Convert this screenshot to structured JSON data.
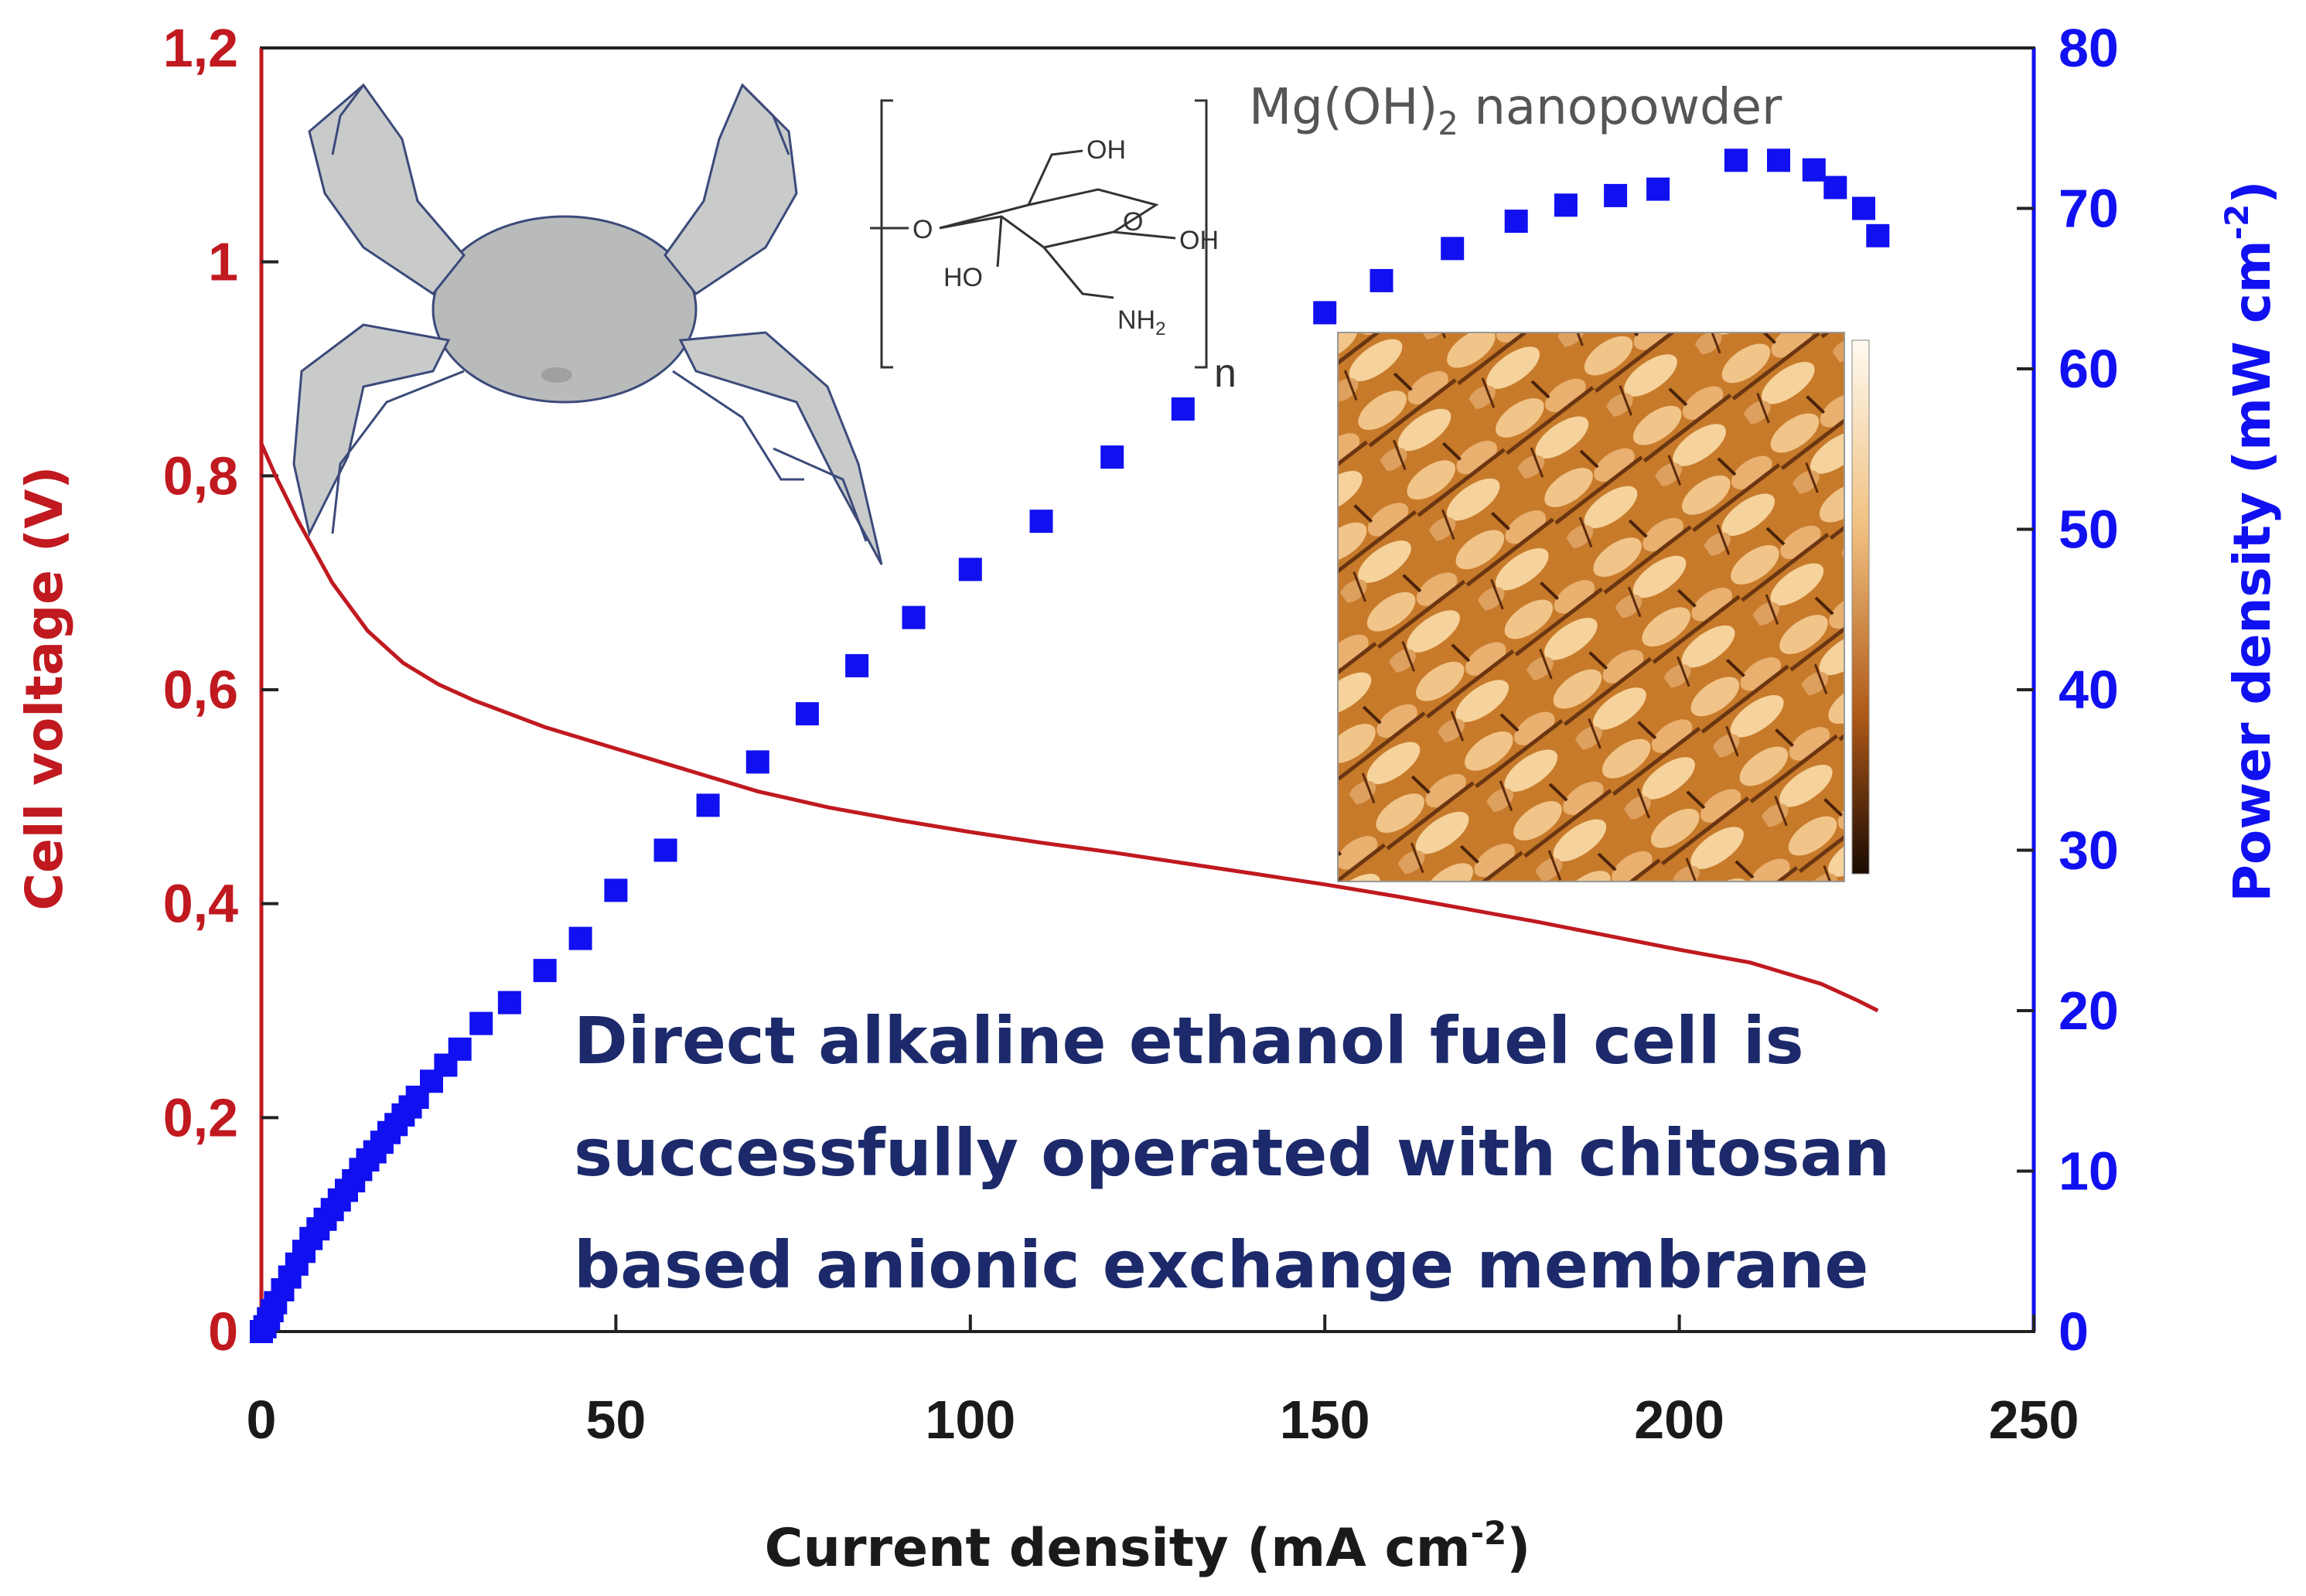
{
  "chart_data": {
    "type": "line",
    "xlabel_prefix": "Current density (mA cm",
    "xlabel_sup": "-2",
    "xlabel_suffix": ")",
    "ylabel_left": "Cell voltage (V)",
    "ylabel_right_prefix": "Power density (mW cm",
    "ylabel_right_sup": "-2",
    "ylabel_right_suffix": ")",
    "xlim": [
      0,
      250
    ],
    "ylim_left": [
      0,
      1.2
    ],
    "ylim_right": [
      0,
      80
    ],
    "x_ticks": [
      "0",
      "50",
      "100",
      "150",
      "200",
      "250"
    ],
    "y_left_ticks": [
      "0",
      "0,2",
      "0,4",
      "0,6",
      "0,8",
      "1",
      "1,2"
    ],
    "y_right_ticks": [
      "0",
      "10",
      "20",
      "30",
      "40",
      "50",
      "60",
      "70",
      "80"
    ],
    "colors": {
      "voltage": "#c0191f",
      "power": "#1010f0",
      "annotation": "#1c2a6b"
    },
    "series": [
      {
        "axis": "left",
        "style": "line",
        "x": [
          0,
          2,
          5,
          10,
          15,
          20,
          25,
          30,
          40,
          50,
          60,
          70,
          80,
          90,
          100,
          110,
          120,
          130,
          140,
          150,
          160,
          170,
          180,
          190,
          200,
          210,
          215,
          220,
          225,
          228
        ],
        "y": [
          0.83,
          0.8,
          0.76,
          0.7,
          0.655,
          0.625,
          0.605,
          0.59,
          0.565,
          0.545,
          0.525,
          0.505,
          0.49,
          0.478,
          0.467,
          0.457,
          0.448,
          0.438,
          0.428,
          0.418,
          0.407,
          0.395,
          0.383,
          0.37,
          0.357,
          0.345,
          0.335,
          0.325,
          0.31,
          0.3
        ]
      },
      {
        "axis": "right",
        "style": "markers",
        "x": [
          0,
          0.5,
          1,
          1.5,
          2,
          3,
          4,
          5,
          6,
          7,
          8,
          9,
          10,
          11,
          12,
          13,
          14,
          15,
          16,
          17,
          18,
          19,
          20,
          21,
          22,
          24,
          26,
          28,
          31,
          35,
          40,
          45,
          50,
          57,
          63,
          70,
          77,
          84,
          92,
          100,
          110,
          120,
          130,
          150,
          158,
          168,
          177,
          184,
          191,
          197,
          208,
          214,
          219,
          222,
          226,
          228
        ],
        "y": [
          0,
          0.3,
          0.8,
          1.3,
          1.8,
          2.6,
          3.4,
          4.2,
          5.0,
          5.8,
          6.4,
          7.0,
          7.6,
          8.2,
          8.8,
          9.4,
          10.1,
          10.7,
          11.2,
          11.8,
          12.4,
          12.9,
          13.5,
          14.0,
          14.6,
          15.6,
          16.6,
          17.6,
          19.2,
          20.5,
          22.5,
          24.5,
          27.5,
          30.0,
          32.8,
          35.5,
          38.5,
          41.5,
          44.5,
          47.5,
          50.5,
          54.5,
          57.5,
          63.5,
          65.5,
          67.5,
          69.2,
          70.2,
          70.8,
          71.2,
          73.0,
          73.0,
          72.4,
          71.3,
          70.0,
          68.3
        ]
      }
    ],
    "annotation_lines": [
      "Direct alkaline ethanol fuel cell is",
      "successfully operated with chitosan",
      "based anionic exchange membrane"
    ],
    "inset_label_prefix": "Mg(OH)",
    "inset_label_sub": "2",
    "inset_label_suffix": " nanopowder",
    "chitosan_labels": {
      "oh_top": "OH",
      "o_ring": "O",
      "o_link": "O",
      "oh_right": "OH",
      "ho_left": "HO",
      "nh2": "NH",
      "nh2_sub": "2",
      "n": "n"
    }
  }
}
